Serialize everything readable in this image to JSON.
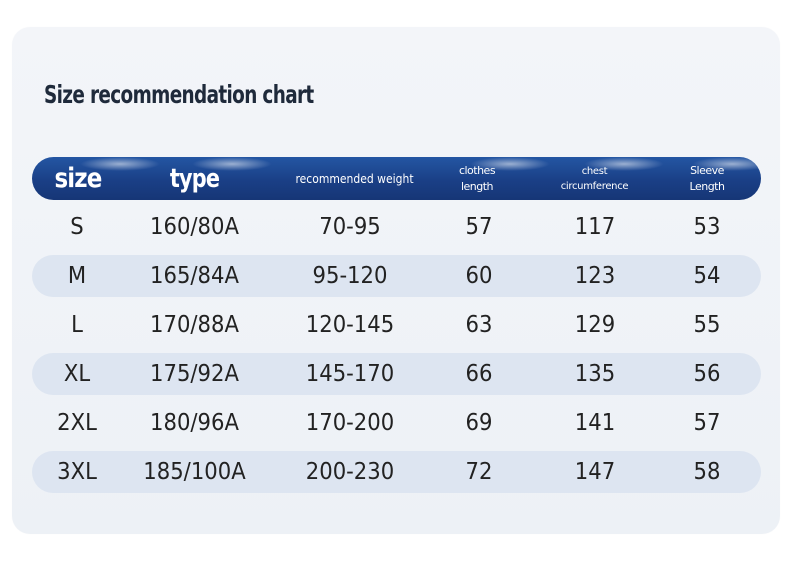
{
  "title": "Size recommendation chart",
  "header": {
    "size": "size",
    "type": "type",
    "weight": "recommended weight",
    "clothes_line1": "clothes",
    "clothes_line2": "length",
    "chest_line1": "chest",
    "chest_line2": "circumference",
    "sleeve_line1": "Sleeve",
    "sleeve_line2": "Length"
  },
  "rows": [
    [
      "S",
      "160/80A",
      "70-95",
      "57",
      "117",
      "53"
    ],
    [
      "M",
      "165/84A",
      "95-120",
      "60",
      "123",
      "54"
    ],
    [
      "L",
      "170/88A",
      "120-145",
      "63",
      "129",
      "55"
    ],
    [
      "XL",
      "175/92A",
      "145-170",
      "66",
      "135",
      "56"
    ],
    [
      "2XL",
      "180/96A",
      "170-200",
      "69",
      "141",
      "57"
    ],
    [
      "3XL",
      "185/100A",
      "200-230",
      "72",
      "147",
      "58"
    ]
  ],
  "colors": {
    "header": "#1a3f86",
    "shaded_row": "#dde5f1",
    "card": "#f0f3f8",
    "title": "#1f2a3b"
  }
}
